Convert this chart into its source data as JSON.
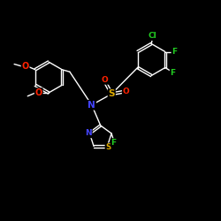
{
  "background_color": "#000000",
  "atom_colors": {
    "C": "#ffffff",
    "N": "#4444ff",
    "O": "#ff2200",
    "S": "#ddaa00",
    "F": "#22cc22",
    "Cl": "#22cc22"
  },
  "bond_color": "#ffffff",
  "bond_lw": 1.0,
  "figsize": [
    2.5,
    2.5
  ],
  "dpi": 100,
  "xlim": [
    0,
    10
  ],
  "ylim": [
    0,
    10
  ]
}
